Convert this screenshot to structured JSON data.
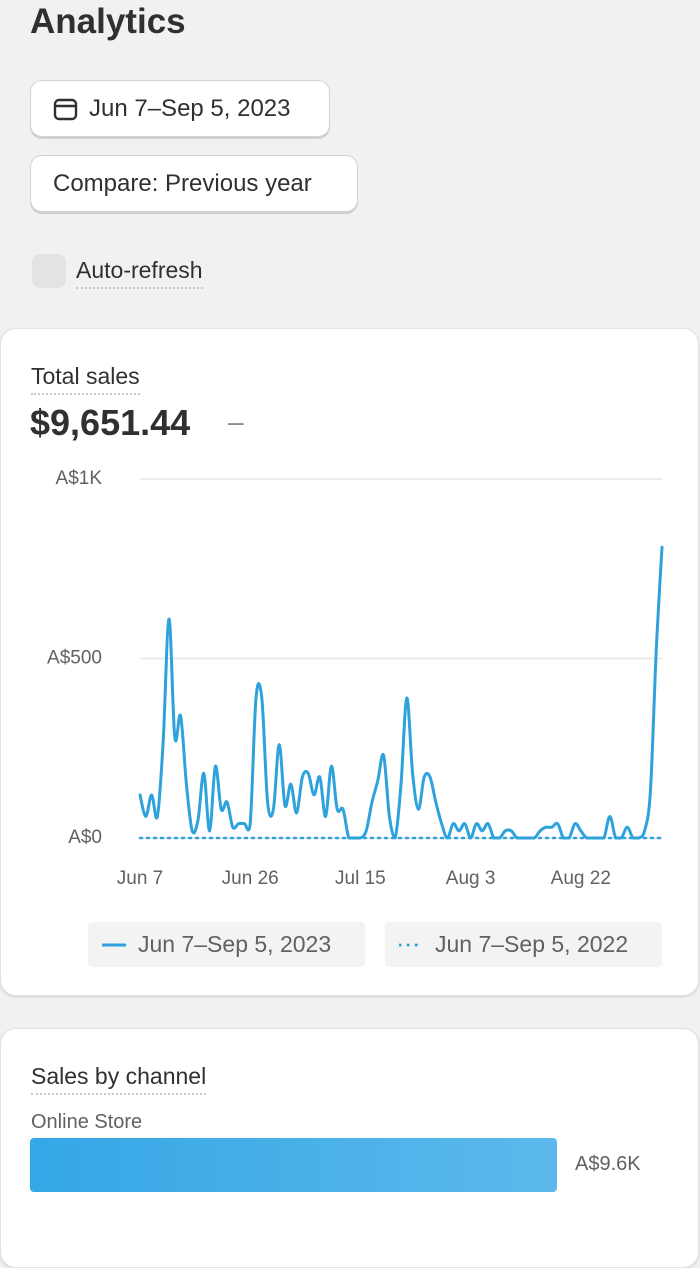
{
  "header": {
    "title": "Analytics"
  },
  "controls": {
    "date_range": "Jun 7–Sep 5, 2023",
    "compare": "Compare: Previous year",
    "auto_refresh": "Auto-refresh"
  },
  "total_sales": {
    "label": "Total sales",
    "value": "$9,651.44",
    "change": "–"
  },
  "chart_data": [
    {
      "type": "line",
      "categories": [
        "Jun 7",
        null,
        null,
        null,
        null,
        null,
        null,
        null,
        null,
        null,
        null,
        null,
        null,
        null,
        null,
        null,
        null,
        null,
        null,
        "Jun 26",
        null,
        null,
        null,
        null,
        null,
        null,
        null,
        null,
        null,
        null,
        null,
        null,
        null,
        null,
        null,
        null,
        null,
        null,
        "Jul 15",
        null,
        null,
        null,
        null,
        null,
        null,
        null,
        null,
        null,
        null,
        null,
        null,
        null,
        null,
        null,
        null,
        null,
        null,
        "Aug 3",
        null,
        null,
        null,
        null,
        null,
        null,
        null,
        null,
        null,
        null,
        null,
        null,
        null,
        null,
        null,
        null,
        null,
        null,
        "Aug 22",
        null,
        null,
        null,
        null,
        null,
        null,
        null,
        null,
        null,
        null,
        null,
        null,
        null,
        null
      ],
      "series": [
        {
          "name": "Jun 7–Sep 5, 2023",
          "color": "#2ea3db",
          "line_style": "solid",
          "values": [
            120,
            60,
            120,
            60,
            270,
            610,
            280,
            340,
            150,
            20,
            50,
            180,
            20,
            200,
            80,
            100,
            30,
            40,
            40,
            40,
            390,
            390,
            100,
            80,
            260,
            90,
            150,
            70,
            170,
            180,
            120,
            170,
            60,
            200,
            80,
            80,
            0,
            0,
            0,
            20,
            100,
            160,
            230,
            60,
            0,
            150,
            390,
            180,
            80,
            170,
            170,
            100,
            40,
            0,
            40,
            20,
            40,
            0,
            40,
            20,
            40,
            0,
            0,
            20,
            20,
            0,
            0,
            0,
            0,
            20,
            30,
            30,
            40,
            0,
            0,
            40,
            20,
            0,
            0,
            0,
            0,
            60,
            0,
            0,
            30,
            0,
            0,
            20,
            130,
            520,
            810
          ]
        },
        {
          "name": "Jun 7–Sep 5, 2022",
          "color": "#2ea3db",
          "line_style": "dotted",
          "values": [
            0,
            0,
            0,
            0,
            0,
            0,
            0,
            0,
            0,
            0,
            0,
            0,
            0,
            0,
            0,
            0,
            0,
            0,
            0,
            0,
            0,
            0,
            0,
            0,
            0,
            0,
            0,
            0,
            0,
            0,
            0,
            0,
            0,
            0,
            0,
            0,
            0,
            0,
            0,
            0,
            0,
            0,
            0,
            0,
            0,
            0,
            0,
            0,
            0,
            0,
            0,
            0,
            0,
            0,
            0,
            0,
            0,
            0,
            0,
            0,
            0,
            0,
            0,
            0,
            0,
            0,
            0,
            0,
            0,
            0,
            0,
            0,
            0,
            0,
            0,
            0,
            0,
            0,
            0,
            0,
            0,
            0,
            0,
            0,
            0,
            0,
            0,
            0,
            0,
            0,
            0
          ]
        }
      ],
      "ylim": [
        0,
        1000
      ],
      "yticks": [
        {
          "value": 0,
          "label": "A$0"
        },
        {
          "value": 500,
          "label": "A$500"
        },
        {
          "value": 1000,
          "label": "A$1K"
        }
      ],
      "grid": true
    },
    {
      "type": "bar",
      "orientation": "horizontal",
      "title": "Sales by channel",
      "categories": [
        "Online Store"
      ],
      "values": [
        9600
      ],
      "value_labels": [
        "A$9.6K"
      ],
      "color": "#34a7e6"
    }
  ]
}
